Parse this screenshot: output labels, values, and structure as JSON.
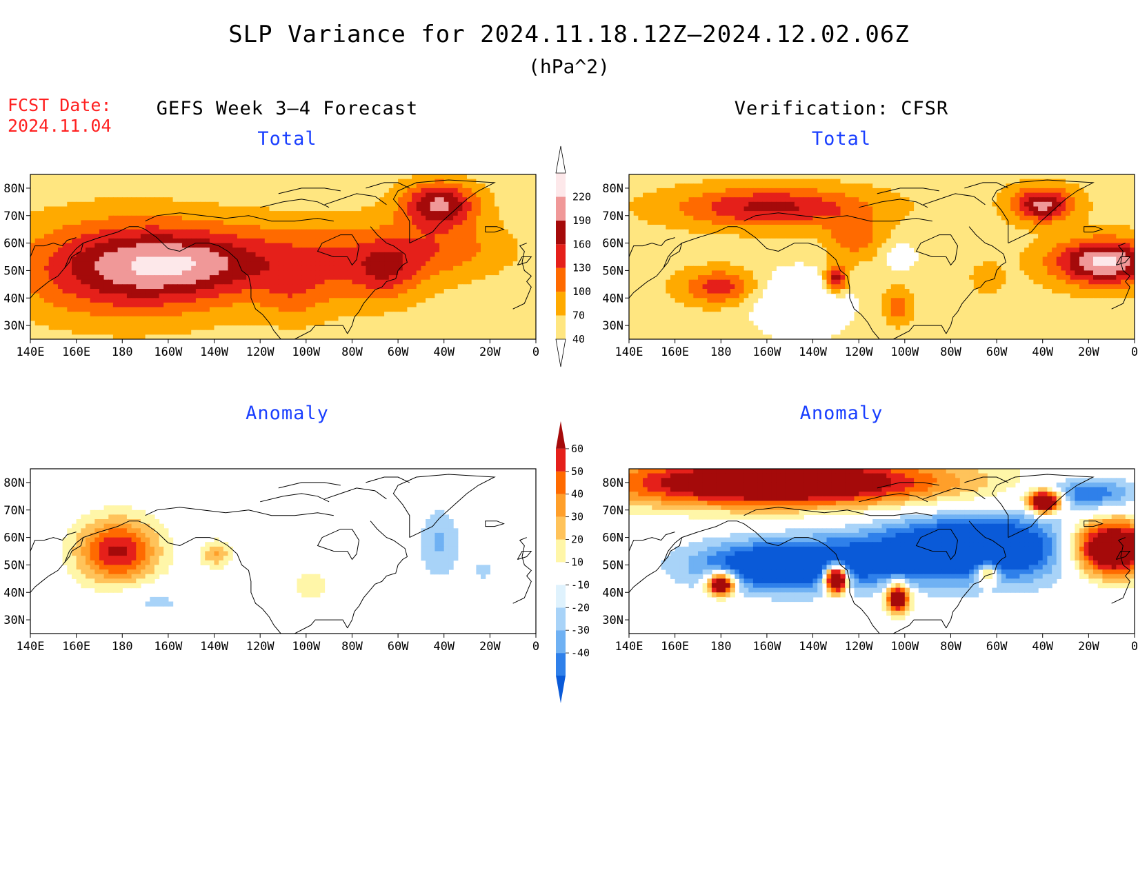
{
  "title": "SLP Variance for 2024.11.18.12Z–2024.12.02.06Z",
  "units": "(hPa^2)",
  "forecast_date_label": "FCST Date:",
  "forecast_date": "2024.11.04",
  "left_header": "GEFS Week 3–4 Forecast",
  "right_header": "Verification: CFSR",
  "panel_titles": {
    "forecast_total": "Total",
    "verification_total": "Total",
    "forecast_anomaly": "Anomaly",
    "verification_anomaly": "Anomaly"
  },
  "axes": {
    "lat_ticks": [
      "80N",
      "70N",
      "60N",
      "50N",
      "40N",
      "30N"
    ],
    "lon_ticks": [
      "140E",
      "160E",
      "180",
      "160W",
      "140W",
      "120W",
      "100W",
      "80W",
      "60W",
      "40W",
      "20W",
      "0"
    ],
    "lat_range": [
      25,
      85
    ],
    "lon_range": [
      140,
      360
    ]
  },
  "total_colorbar": {
    "levels": [
      40,
      70,
      100,
      130,
      160,
      190,
      220
    ],
    "labels": [
      "40",
      "70",
      "100",
      "130",
      "160",
      "190",
      "220"
    ],
    "colors": [
      "#ffe680",
      "#ffaa00",
      "#ff6a00",
      "#e5201a",
      "#a50a0a",
      "#f09898",
      "#fde8ea"
    ]
  },
  "anomaly_colorbar": {
    "levels": [
      -40,
      -30,
      -20,
      -10,
      10,
      20,
      30,
      40,
      50,
      60
    ],
    "labels": [
      "-40",
      "-30",
      "-20",
      "-10",
      "10",
      "20",
      "30",
      "40",
      "50",
      "60"
    ],
    "colors": [
      "#0a5ad8",
      "#2f80ea",
      "#6fb1f3",
      "#a8d3f8",
      "#dff2fd",
      "#ffffff",
      "#fff6a8",
      "#ffc35a",
      "#ff9f2a",
      "#ff6a00",
      "#e5201a",
      "#a50a0a"
    ]
  },
  "fields": {
    "forecast_total": {
      "background": 55,
      "blobs": [
        {
          "lon": 182,
          "lat": 51,
          "rx": 45,
          "ry": 17,
          "v": 135
        },
        {
          "lon": 215,
          "lat": 53,
          "rx": 35,
          "ry": 12,
          "v": 70
        },
        {
          "lon": 270,
          "lat": 53,
          "rx": 40,
          "ry": 15,
          "v": 70
        },
        {
          "lon": 295,
          "lat": 50,
          "rx": 14,
          "ry": 10,
          "v": 60
        },
        {
          "lon": 318,
          "lat": 74,
          "rx": 16,
          "ry": 8,
          "v": 140
        },
        {
          "lon": 320,
          "lat": 58,
          "rx": 28,
          "ry": 10,
          "v": 55
        },
        {
          "lon": 255,
          "lat": 40,
          "rx": 14,
          "ry": 10,
          "v": 30
        }
      ],
      "min": 10
    },
    "verification_total": {
      "background": 60,
      "blobs": [
        {
          "lon": 202,
          "lat": 73,
          "rx": 40,
          "ry": 7,
          "v": 110
        },
        {
          "lon": 238,
          "lat": 62,
          "rx": 12,
          "ry": 8,
          "v": 60
        },
        {
          "lon": 320,
          "lat": 74,
          "rx": 13,
          "ry": 6,
          "v": 140
        },
        {
          "lon": 347,
          "lat": 53,
          "rx": 22,
          "ry": 8,
          "v": 170
        },
        {
          "lon": 180,
          "lat": 44,
          "rx": 16,
          "ry": 6,
          "v": 90
        },
        {
          "lon": 230,
          "lat": 47,
          "rx": 5,
          "ry": 5,
          "v": 140
        },
        {
          "lon": 257,
          "lat": 37,
          "rx": 6,
          "ry": 6,
          "v": 60
        },
        {
          "lon": 215,
          "lat": 38,
          "rx": 20,
          "ry": 12,
          "v": -90
        },
        {
          "lon": 258,
          "lat": 55,
          "rx": 8,
          "ry": 5,
          "v": -55
        },
        {
          "lon": 296,
          "lat": 47,
          "rx": 6,
          "ry": 5,
          "v": 40
        }
      ],
      "min": 10
    },
    "forecast_anomaly": {
      "background": 0,
      "blobs": [
        {
          "lon": 178,
          "lat": 55,
          "rx": 18,
          "ry": 12,
          "v": 62
        },
        {
          "lon": 221,
          "lat": 54,
          "rx": 7,
          "ry": 5,
          "v": 30
        },
        {
          "lon": 318,
          "lat": 58,
          "rx": 9,
          "ry": 13,
          "v": -22
        },
        {
          "lon": 337,
          "lat": 48,
          "rx": 6,
          "ry": 4,
          "v": -14
        },
        {
          "lon": 193,
          "lat": 37,
          "rx": 18,
          "ry": 6,
          "v": -14
        },
        {
          "lon": 262,
          "lat": 42,
          "rx": 10,
          "ry": 7,
          "v": 15
        }
      ],
      "min": -80
    },
    "verification_anomaly": {
      "background": 0,
      "blobs": [
        {
          "lon": 205,
          "lat": 80,
          "rx": 75,
          "ry": 9,
          "v": 95
        },
        {
          "lon": 210,
          "lat": 50,
          "rx": 40,
          "ry": 9,
          "v": -70
        },
        {
          "lon": 290,
          "lat": 56,
          "rx": 45,
          "ry": 12,
          "v": -75
        },
        {
          "lon": 350,
          "lat": 56,
          "rx": 18,
          "ry": 10,
          "v": 110
        },
        {
          "lon": 340,
          "lat": 76,
          "rx": 22,
          "ry": 6,
          "v": -40
        },
        {
          "lon": 321,
          "lat": 73,
          "rx": 7,
          "ry": 4,
          "v": 120
        },
        {
          "lon": 230,
          "lat": 45,
          "rx": 5,
          "ry": 5,
          "v": 150
        },
        {
          "lon": 180,
          "lat": 43,
          "rx": 6,
          "ry": 4,
          "v": 110
        },
        {
          "lon": 257,
          "lat": 38,
          "rx": 5,
          "ry": 5,
          "v": 100
        },
        {
          "lon": 296,
          "lat": 47,
          "rx": 5,
          "ry": 4,
          "v": 60
        }
      ],
      "min": -80
    }
  }
}
